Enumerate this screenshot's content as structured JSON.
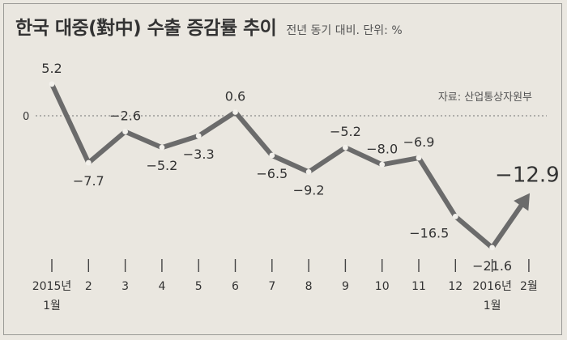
{
  "header": {
    "title": "한국 대중(對中) 수출 증감률 추이",
    "subtitle": "전년 동기 대비. 단위: %",
    "source": "자료: 산업통상자원부"
  },
  "colors": {
    "line": "#6b6b6b",
    "zero_line": "#8a8a8a",
    "text": "#333333",
    "background": "#eae7e0"
  },
  "chart_data": {
    "type": "line",
    "title": "한국 대중(對中) 수출 증감률 추이",
    "subtitle": "전년 동기 대비. 단위: %",
    "categories": [
      "2015년\n1월",
      "2",
      "3",
      "4",
      "5",
      "6",
      "7",
      "8",
      "9",
      "10",
      "11",
      "12",
      "2016년\n1월",
      "2월"
    ],
    "series": [
      {
        "name": "수출 증감률",
        "values": [
          5.2,
          -7.7,
          -2.6,
          -5.2,
          -3.3,
          0.6,
          -6.5,
          -9.2,
          -5.2,
          -8.0,
          -6.9,
          -16.5,
          -21.6,
          -12.9
        ]
      }
    ],
    "data_labels": [
      "5.2",
      "−7.7",
      "−2.6",
      "−5.2",
      "−3.3",
      "0.6",
      "−6.5",
      "−9.2",
      "−5.2",
      "−8.0",
      "−6.9",
      "−16.5",
      "−21.6",
      "−12.9"
    ],
    "label_position": [
      "above",
      "below",
      "above",
      "below",
      "below",
      "above",
      "below",
      "below",
      "above",
      "above",
      "above",
      "left",
      "below",
      "above"
    ],
    "zero_label": "0",
    "ylim": [
      -24,
      7.5
    ],
    "grid": false,
    "last_point_arrow": true
  }
}
